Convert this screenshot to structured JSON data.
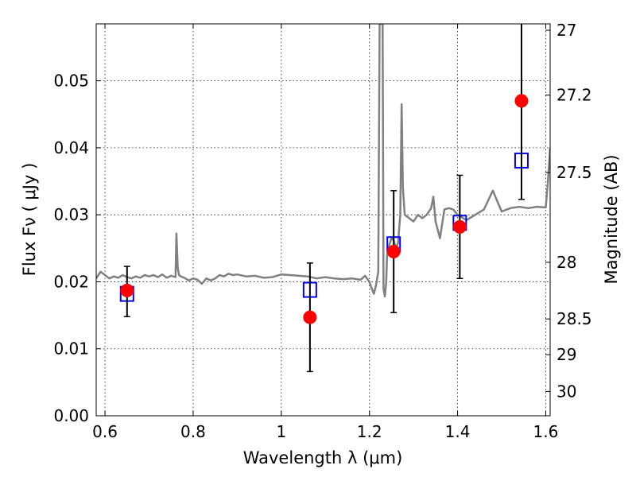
{
  "chart_data": {
    "type": "scatter",
    "xlabel": "Wavelength  λ (μm)",
    "ylabel": "Flux  Fν  ( μJy )",
    "ylabel_right": "Magnitude (AB)",
    "xlim": [
      0.58,
      1.61
    ],
    "ylim": [
      0.0,
      0.0585
    ],
    "x_ticks": [
      0.6,
      0.8,
      1.0,
      1.2,
      1.4,
      1.6
    ],
    "x_tick_labels": [
      "0.6",
      "0.8",
      "1",
      "1.2",
      "1.4",
      "1.6"
    ],
    "y_ticks": [
      0.0,
      0.01,
      0.02,
      0.03,
      0.04,
      0.05
    ],
    "y_tick_labels": [
      "0.00",
      "0.01",
      "0.02",
      "0.03",
      "0.04",
      "0.05"
    ],
    "right_ticks": [
      {
        "mag": 27,
        "label": "27"
      },
      {
        "mag": 27.2,
        "label": "27.2"
      },
      {
        "mag": 27.5,
        "label": "27.5"
      },
      {
        "mag": 28,
        "label": "28"
      },
      {
        "mag": 28.5,
        "label": "28.5"
      },
      {
        "mag": 29,
        "label": "29"
      },
      {
        "mag": 30,
        "label": "30"
      }
    ],
    "grid": true,
    "series": [
      {
        "kind": "sed-model",
        "color": "#808080",
        "x": [
          0.58,
          0.59,
          0.6,
          0.61,
          0.62,
          0.63,
          0.64,
          0.65,
          0.66,
          0.67,
          0.68,
          0.69,
          0.7,
          0.71,
          0.72,
          0.73,
          0.74,
          0.75,
          0.76,
          0.762,
          0.765,
          0.768,
          0.772,
          0.78,
          0.79,
          0.8,
          0.81,
          0.82,
          0.83,
          0.84,
          0.85,
          0.86,
          0.87,
          0.88,
          0.89,
          0.9,
          0.92,
          0.94,
          0.96,
          0.98,
          1.0,
          1.02,
          1.04,
          1.06,
          1.08,
          1.1,
          1.12,
          1.14,
          1.16,
          1.18,
          1.19,
          1.2,
          1.205,
          1.21,
          1.215,
          1.22,
          1.223,
          1.226,
          1.23,
          1.232,
          1.235,
          1.238,
          1.24,
          1.245,
          1.25,
          1.255,
          1.26,
          1.265,
          1.27,
          1.273,
          1.276,
          1.28,
          1.29,
          1.3,
          1.31,
          1.32,
          1.33,
          1.34,
          1.345,
          1.35,
          1.36,
          1.37,
          1.38,
          1.39,
          1.4,
          1.42,
          1.44,
          1.46,
          1.48,
          1.5,
          1.52,
          1.54,
          1.56,
          1.58,
          1.6,
          1.605,
          1.61
        ],
        "y": [
          0.0205,
          0.0215,
          0.021,
          0.0205,
          0.0208,
          0.0206,
          0.021,
          0.0207,
          0.0205,
          0.0208,
          0.0206,
          0.021,
          0.0208,
          0.021,
          0.0207,
          0.0211,
          0.0206,
          0.0209,
          0.0207,
          0.0272,
          0.022,
          0.021,
          0.0208,
          0.0206,
          0.0202,
          0.0205,
          0.0203,
          0.0197,
          0.0205,
          0.0202,
          0.0205,
          0.021,
          0.0208,
          0.0212,
          0.021,
          0.0211,
          0.0208,
          0.0209,
          0.0206,
          0.0207,
          0.0211,
          0.021,
          0.0209,
          0.0208,
          0.0205,
          0.0207,
          0.0205,
          0.0204,
          0.0205,
          0.0203,
          0.0209,
          0.02,
          0.019,
          0.0182,
          0.0195,
          0.0215,
          0.0585,
          0.0585,
          0.0585,
          0.019,
          0.0178,
          0.02,
          0.024,
          0.0255,
          0.0265,
          0.0262,
          0.025,
          0.0258,
          0.03,
          0.0465,
          0.034,
          0.03,
          0.0295,
          0.029,
          0.03,
          0.0295,
          0.03,
          0.031,
          0.0327,
          0.029,
          0.0265,
          0.0308,
          0.031,
          0.0308,
          0.03,
          0.0292,
          0.03,
          0.0308,
          0.0336,
          0.0305,
          0.031,
          0.0312,
          0.031,
          0.0312,
          0.0311,
          0.035,
          0.04
        ]
      },
      {
        "kind": "model-fluxes",
        "marker": "open-square",
        "color": "#0000ff",
        "x": [
          0.65,
          1.065,
          1.255,
          1.405,
          1.545
        ],
        "y": [
          0.0182,
          0.0188,
          0.0256,
          0.0288,
          0.0381
        ]
      },
      {
        "kind": "observed-fluxes",
        "marker": "filled-circle",
        "color": "#ff0000",
        "x": [
          0.65,
          1.065,
          1.255,
          1.405,
          1.545
        ],
        "y": [
          0.0187,
          0.0147,
          0.0245,
          0.0282,
          0.047
        ],
        "y_err_low": [
          0.0148,
          0.0066,
          0.0154,
          0.0205,
          0.0323
        ],
        "y_err_high": [
          0.0223,
          0.0228,
          0.0336,
          0.0359,
          0.0585
        ]
      }
    ]
  }
}
